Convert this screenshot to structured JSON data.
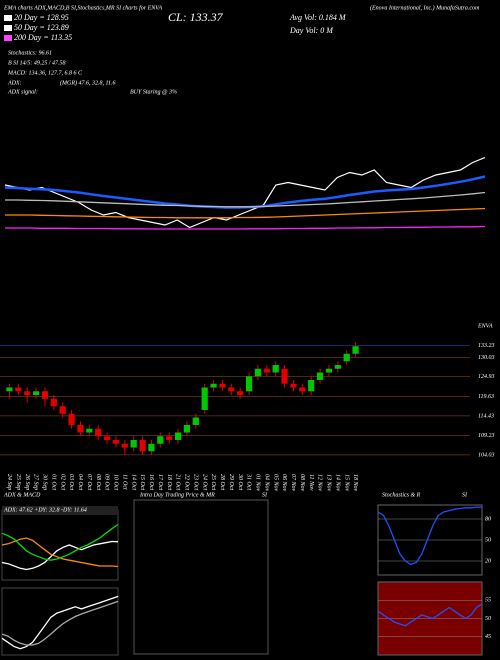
{
  "header": {
    "title": "EMA charts ADX,MACD,B SI,Stochastics,MR SI charts for ENVA",
    "source": "(Enova International, Inc.) MunafaSutra.com",
    "close": "CL: 133.37",
    "avg_vol": "Avg Vol: 0.184  M",
    "day_vol": "Day Vol: 0  M",
    "legend": [
      {
        "text": "20  Day = 128.95",
        "color": "#ffffff"
      },
      {
        "text": "50  Day = 123.89",
        "color": "#ffffff"
      },
      {
        "text": "200  Day = 113.35",
        "color": "#ff40ff"
      }
    ],
    "indicators": [
      "Stochastics: 96.61",
      "B SI 14/5: 49.25 / 47.58",
      "MACD: 134.36, 127.7, 6.8    6   C"
    ],
    "adx": [
      "ADX:",
      "(MGR) 47.6, 32.8, 11.6"
    ],
    "adx_signal": [
      "ADX  signal:",
      "BUY Staring @ 3%"
    ],
    "symbol": "ENVA"
  },
  "panels": {
    "adx_macd": "ADX  & MACD",
    "intraday": "Intra Day Trading Price  & MR",
    "intraday_si": "SI",
    "stoch": "Stochastics & R",
    "stoch_si": "SI"
  },
  "chart_data": [
    {
      "type": "line",
      "ylim": [
        80,
        140
      ],
      "price_color": "#ffffff",
      "series": [
        {
          "color": "#1e5bff",
          "values": [
            121,
            120.8,
            120.5,
            120.3,
            120,
            119.5,
            119,
            118.3,
            117.6,
            117,
            116.4,
            115.8,
            115.2,
            114.6,
            114.2,
            113.7,
            113.4,
            113.2,
            113,
            113,
            113.2,
            113.5,
            114.3,
            115,
            115.6,
            116.1,
            116.5,
            117.2,
            118,
            118.7,
            119.4,
            119.8,
            120.1,
            120.4,
            121,
            121.7,
            122.5,
            123.3,
            124.3,
            125.4
          ]
        },
        {
          "color": "#bbbbbb",
          "values": [
            116,
            116,
            115.9,
            115.8,
            115.7,
            115.5,
            115.3,
            115.1,
            114.9,
            114.7,
            114.5,
            114.3,
            114.1,
            113.9,
            113.8,
            113.6,
            113.5,
            113.4,
            113.3,
            113.3,
            113.3,
            113.4,
            113.6,
            113.8,
            114,
            114.2,
            114.4,
            114.7,
            115,
            115.3,
            115.6,
            115.9,
            116.2,
            116.5,
            116.8,
            117.2,
            117.6,
            118,
            118.5,
            119
          ]
        },
        {
          "color": "#ff8c00",
          "values": [
            110,
            110,
            110,
            109.9,
            109.8,
            109.7,
            109.6,
            109.5,
            109.4,
            109.3,
            109.2,
            109.1,
            109,
            109,
            108.9,
            108.9,
            108.9,
            108.9,
            108.9,
            109,
            109,
            109.1,
            109.2,
            109.4,
            109.6,
            109.8,
            110,
            110.2,
            110.4,
            110.6,
            110.8,
            111,
            111.2,
            111.4,
            111.6,
            111.8,
            112,
            112.2,
            112.4,
            112.6
          ]
        },
        {
          "color": "#ff20ff",
          "values": [
            104.8,
            104.8,
            104.8,
            104.7,
            104.7,
            104.7,
            104.6,
            104.6,
            104.6,
            104.5,
            104.5,
            104.5,
            104.4,
            104.4,
            104.4,
            104.4,
            104.4,
            104.4,
            104.4,
            104.4,
            104.5,
            104.5,
            104.5,
            104.6,
            104.6,
            104.7,
            104.7,
            104.8,
            104.8,
            104.9,
            104.9,
            105,
            105,
            105.1,
            105.1,
            105.2,
            105.2,
            105.3,
            105.3,
            105.4
          ]
        }
      ]
    },
    {
      "type": "candlestick",
      "up_color": "#00c800",
      "down_color": "#e00000",
      "categories": [
        "24 Sep",
        "25 Sep",
        "26 Sep",
        "27 Sep",
        "30 Sep",
        "01 Oct",
        "02 Oct",
        "03 Oct",
        "04 Oct",
        "07 Oct",
        "08 Oct",
        "09 Oct",
        "10 Oct",
        "11 Oct",
        "14 Oct",
        "15 Oct",
        "16 Oct",
        "17 Oct",
        "18 Oct",
        "21 Oct",
        "22 Oct",
        "23 Oct",
        "24 Oct",
        "25 Oct",
        "28 Oct",
        "29 Oct",
        "30 Oct",
        "31 Oct",
        "01 Nov",
        "04 Nov",
        "05 Nov",
        "06 Nov",
        "07 Nov",
        "08 Nov",
        "11 Nov",
        "12 Nov",
        "13 Nov",
        "14 Nov",
        "15 Nov",
        "18 Nov"
      ],
      "ohlc": [
        [
          121,
          123,
          119,
          122
        ],
        [
          122,
          123,
          120,
          121
        ],
        [
          121,
          122,
          118,
          120
        ],
        [
          120,
          122,
          119,
          121
        ],
        [
          121,
          122,
          117,
          119
        ],
        [
          119,
          120,
          116,
          117
        ],
        [
          117,
          118,
          114,
          115
        ],
        [
          115,
          116,
          111,
          112
        ],
        [
          112,
          113,
          109,
          110
        ],
        [
          110,
          112,
          109,
          111
        ],
        [
          111,
          112,
          108,
          109
        ],
        [
          109,
          110,
          107,
          108
        ],
        [
          108,
          109,
          106,
          107
        ],
        [
          107,
          108,
          104,
          106
        ],
        [
          106,
          109,
          105,
          108
        ],
        [
          108,
          109,
          104,
          105
        ],
        [
          105,
          108,
          104,
          107
        ],
        [
          107,
          110,
          106,
          109
        ],
        [
          109,
          110,
          107,
          108
        ],
        [
          108,
          111,
          107,
          110
        ],
        [
          110,
          113,
          109,
          112
        ],
        [
          112,
          115,
          111,
          114
        ],
        [
          116,
          123,
          115,
          122
        ],
        [
          122,
          124,
          121,
          123
        ],
        [
          123,
          124,
          121,
          122
        ],
        [
          122,
          123,
          120,
          121
        ],
        [
          121,
          122,
          119,
          120
        ],
        [
          121,
          126,
          120,
          125
        ],
        [
          125,
          128,
          124,
          127
        ],
        [
          127,
          128,
          125,
          126
        ],
        [
          126,
          129,
          125,
          128
        ],
        [
          127,
          128,
          122,
          123
        ],
        [
          123,
          124,
          121,
          122
        ],
        [
          122,
          123,
          120,
          121
        ],
        [
          121,
          125,
          120,
          124
        ],
        [
          124,
          127,
          123,
          126
        ],
        [
          126,
          128,
          125,
          127
        ],
        [
          127,
          129,
          126,
          128
        ],
        [
          129,
          132,
          128,
          131
        ],
        [
          131,
          134,
          130,
          133
        ]
      ],
      "ylim": [
        100,
        136
      ],
      "yticks": [
        133.23,
        130.03,
        124.93,
        119.63,
        114.43,
        109.23,
        104.03
      ]
    },
    {
      "type": "line",
      "label": "ADX: 47.62  +DY: 32.8  -DY: 11.64",
      "ylim": [
        0,
        60
      ],
      "series": [
        {
          "color": "#ffffff",
          "values": [
            15,
            14,
            12,
            10,
            9,
            10,
            12,
            15,
            20,
            25,
            28,
            30,
            28,
            26,
            28,
            30,
            31,
            32,
            33,
            32.8
          ]
        },
        {
          "color": "#ff8c00",
          "values": [
            30,
            31,
            33,
            35,
            36,
            34,
            30,
            26,
            22,
            20,
            18,
            17,
            16,
            15,
            14,
            13,
            12,
            12,
            12,
            11.6
          ]
        },
        {
          "color": "#00e000",
          "values": [
            40,
            38,
            35,
            30,
            25,
            22,
            20,
            18,
            17,
            18,
            20,
            22,
            25,
            28,
            30,
            33,
            36,
            40,
            44,
            47.6
          ]
        }
      ]
    },
    {
      "type": "line",
      "ylim": [
        -6,
        10
      ],
      "series": [
        {
          "color": "#ffffff",
          "values": [
            -2,
            -3,
            -4,
            -4.5,
            -4,
            -3,
            -1,
            1,
            3,
            4,
            4.5,
            5,
            5.5,
            5,
            5.5,
            6,
            6.5,
            7,
            7.5,
            8
          ]
        },
        {
          "color": "#aaaaaa",
          "values": [
            -1,
            -1.5,
            -2.5,
            -3.2,
            -3.6,
            -3.6,
            -3.2,
            -2.2,
            -1,
            0.3,
            1.5,
            2.4,
            3.2,
            3.8,
            4.3,
            4.8,
            5.3,
            5.8,
            6.3,
            6.8
          ]
        }
      ]
    },
    {
      "type": "line",
      "ylim": [
        0,
        100
      ],
      "yticks": [
        80,
        50,
        20
      ],
      "background": "#000000",
      "series": [
        {
          "color": "#2050ff",
          "values": [
            90,
            85,
            70,
            50,
            30,
            20,
            15,
            18,
            30,
            50,
            70,
            85,
            90,
            92,
            94,
            95,
            96,
            96,
            97,
            97
          ]
        }
      ]
    },
    {
      "type": "line",
      "ylim": [
        40,
        60
      ],
      "yticks": [
        55,
        50,
        45
      ],
      "background": "#7a0000",
      "series": [
        {
          "color": "#2050ff",
          "values": [
            52,
            51,
            50,
            49,
            48.5,
            48,
            49,
            50,
            51,
            50.5,
            50,
            51,
            52,
            53,
            52,
            51,
            50,
            51,
            53,
            54
          ]
        }
      ]
    }
  ]
}
